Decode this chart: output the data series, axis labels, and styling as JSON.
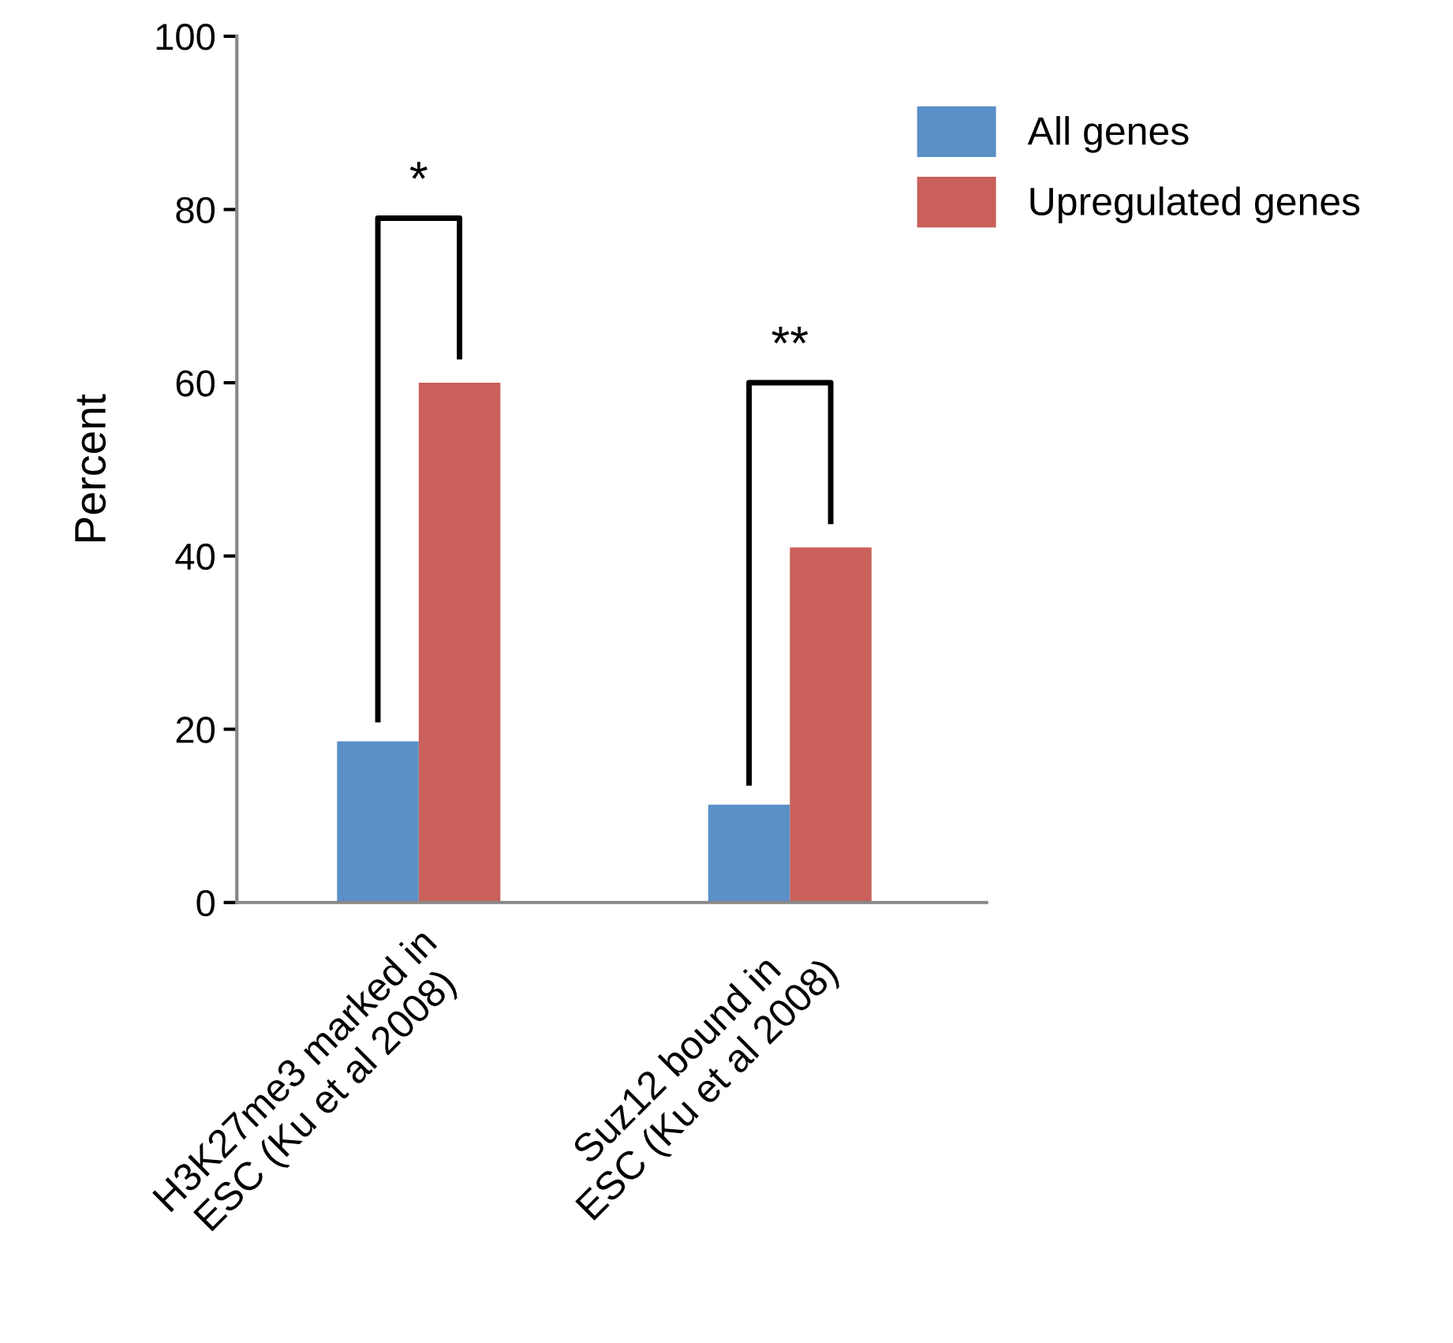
{
  "chart_data": {
    "type": "bar",
    "ylabel": "Percent",
    "categories": [
      "H3K27me3 marked in\nESC (Ku et al 2008)",
      "Suz12 bound in\nESC (Ku et al 2008)"
    ],
    "series": [
      {
        "name": "All genes",
        "color": "#5b8fc8",
        "values": [
          18.6,
          11.3
        ]
      },
      {
        "name": "Upregulated genes",
        "color": "#c9605a",
        "values": [
          60,
          41
        ]
      }
    ],
    "ylim": [
      0,
      100
    ],
    "yticks": [
      0,
      20,
      40,
      60,
      80,
      100
    ],
    "grid": false,
    "legend": "top right",
    "annotations": [
      "*",
      "**"
    ]
  }
}
